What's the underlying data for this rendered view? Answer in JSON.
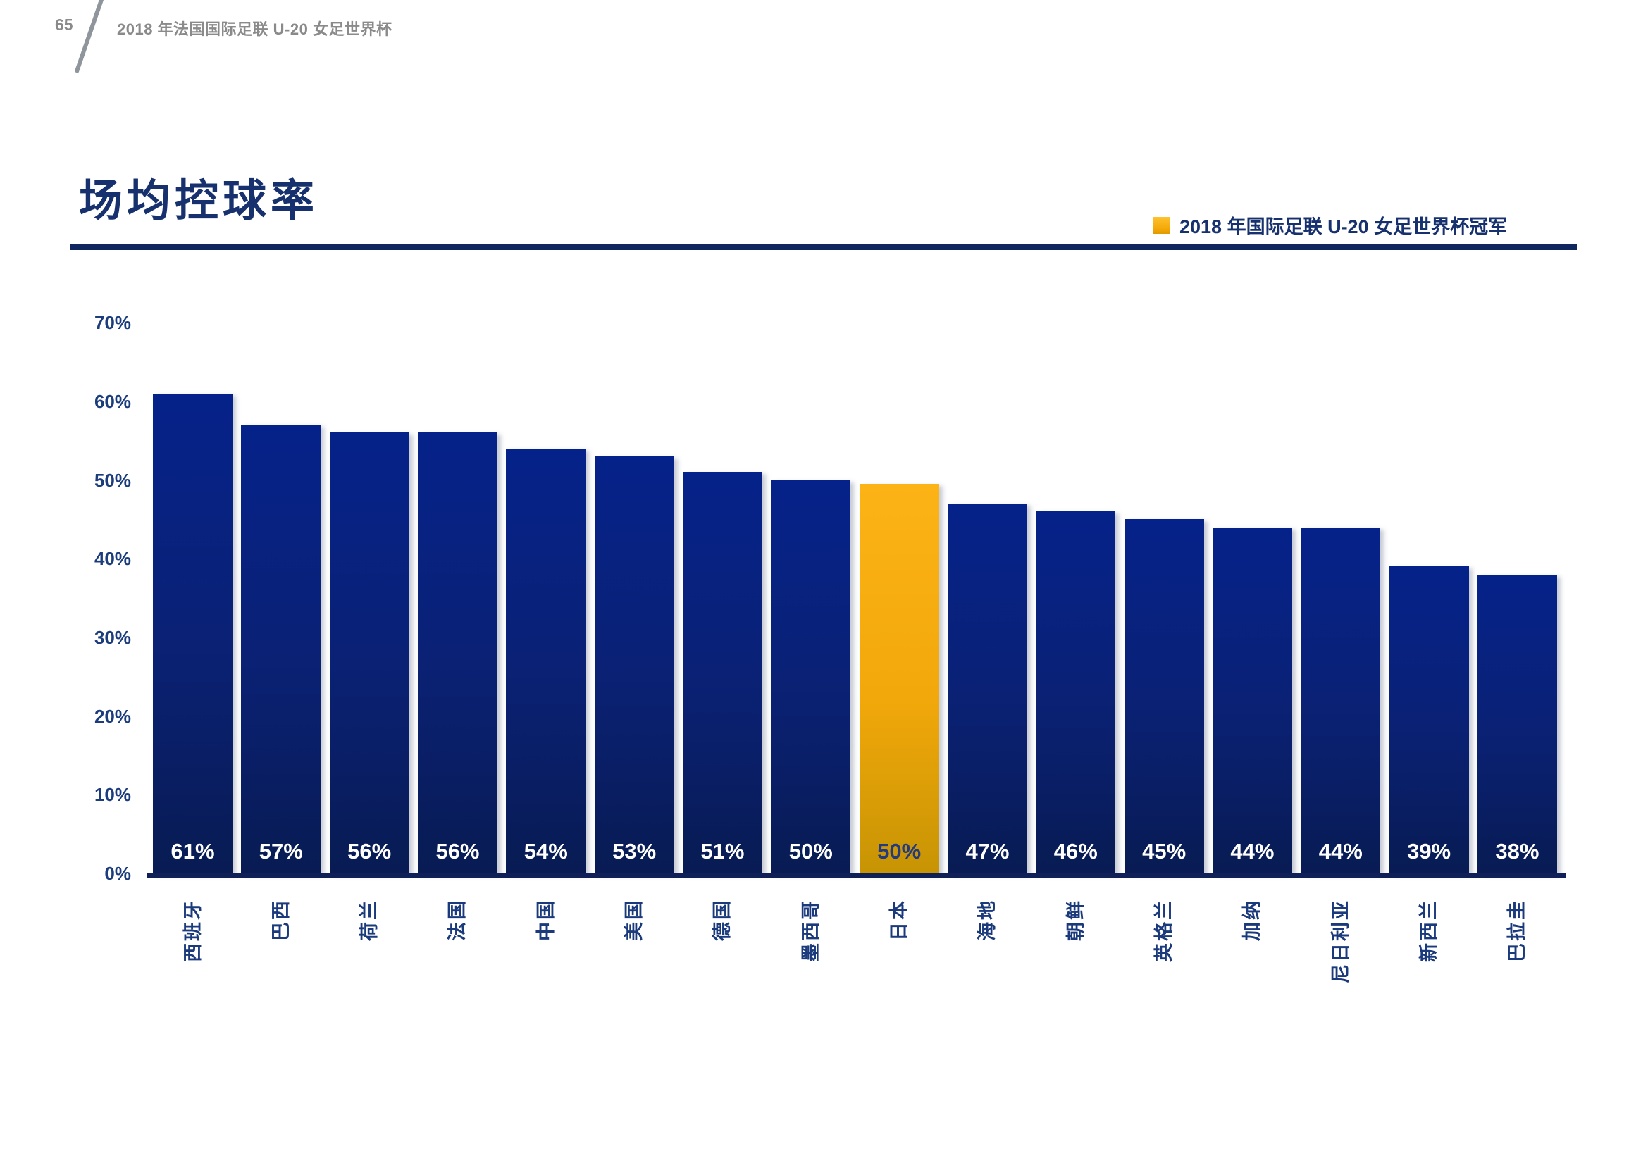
{
  "page": {
    "page_number": "65",
    "header_title": "2018 年法国国际足联 U-20 女足世界杯"
  },
  "chart_data": {
    "type": "bar",
    "title": "场均控球率",
    "legend": {
      "label": "2018 年国际足联 U-20 女足世界杯冠军",
      "color": "#F3A807",
      "position": "top-right"
    },
    "categories": [
      "西班牙",
      "巴西",
      "荷兰",
      "法国",
      "中国",
      "美国",
      "德国",
      "墨西哥",
      "日本",
      "海地",
      "朝鲜",
      "英格兰",
      "加纳",
      "尼日利亚",
      "新西兰",
      "巴拉圭"
    ],
    "values": [
      61,
      57,
      56,
      56,
      54,
      53,
      51,
      50,
      50,
      47,
      46,
      45,
      44,
      44,
      39,
      38
    ],
    "value_labels": [
      "61%",
      "57%",
      "56%",
      "56%",
      "54%",
      "53%",
      "51%",
      "50%",
      "50%",
      "47%",
      "46%",
      "45%",
      "44%",
      "44%",
      "39%",
      "38%"
    ],
    "bar_display_values": [
      61,
      57,
      56,
      56,
      54,
      53,
      51,
      50,
      49.5,
      47,
      46,
      45,
      44,
      44,
      39,
      38
    ],
    "highlight_index": 8,
    "bar_color": "#0A2173",
    "highlight_color": "#F7AC07",
    "ylabel": "",
    "xlabel": "",
    "ylim": [
      0,
      70
    ],
    "ytick_labels": [
      "0%",
      "10%",
      "20%",
      "30%",
      "40%",
      "50%",
      "60%",
      "70%"
    ],
    "ytick_values": [
      0,
      10,
      20,
      30,
      40,
      50,
      60,
      70
    ],
    "grid": false
  }
}
